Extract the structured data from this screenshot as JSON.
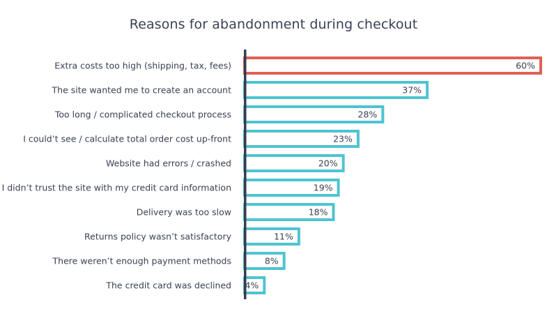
{
  "chart_data": {
    "type": "bar",
    "orientation": "horizontal",
    "title": "Reasons for abandonment during checkout",
    "xlabel": "",
    "ylabel": "",
    "xlim": [
      0,
      60
    ],
    "grid": false,
    "categories": [
      "Extra costs too high (shipping, tax, fees)",
      "The site wanted me to create an account",
      "Too long / complicated checkout process",
      "I could’t see / calculate total order cost up-front",
      "Website had errors / crashed",
      "I didn’t trust the site with my credit card information",
      "Delivery was too slow",
      "Returns policy wasn’t satisfactory",
      "There weren’t enough payment methods",
      "The credit card was declined"
    ],
    "values": [
      60,
      37,
      28,
      23,
      20,
      19,
      18,
      11,
      8,
      4
    ],
    "value_labels": [
      "60%",
      "37%",
      "28%",
      "23%",
      "20%",
      "19%",
      "18%",
      "11%",
      "8%",
      "4%"
    ],
    "colors": {
      "highlight": "#e06055",
      "default": "#4fc3d1",
      "axis": "#343c4f"
    },
    "highlight_index": 0
  }
}
